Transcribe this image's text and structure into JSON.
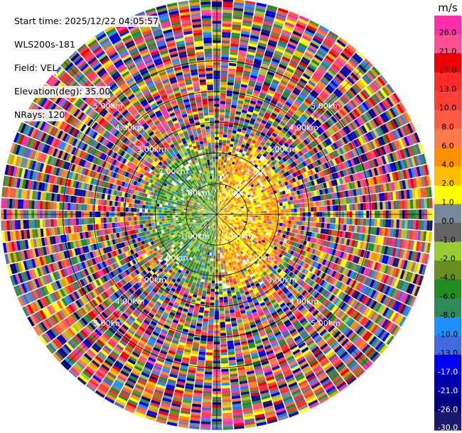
{
  "info": {
    "start_time": "Start time: 2025/12/22 04:05:57",
    "site": "WLS200s-181",
    "field": "Field: VEL",
    "elevation": "Elevation(deg): 35.00",
    "nrays": "NRays: 120"
  },
  "chart_data": {
    "type": "heatmap",
    "projection": "polar-ppi",
    "field": "VEL",
    "units": "m/s",
    "n_rays": 120,
    "elevation_deg": 35.0,
    "grid": true,
    "range_ring_labels": [
      "1.00km",
      "2.00km",
      "3.00km",
      "4.00km",
      "5.00km"
    ],
    "range_rings_km": [
      1,
      2,
      3,
      4,
      5
    ],
    "max_range_km": 7.0,
    "colorbar": {
      "label": "m/s",
      "position": "right",
      "ticks": [
        "26.0",
        "21.0",
        "17.0",
        "13.0",
        "10.0",
        "8.0",
        "6.0",
        "4.0",
        "2.0",
        "1.0",
        "0.0",
        "-1.0",
        "-2.0",
        "-4.0",
        "-6.0",
        "-8.0",
        "-10.0",
        "-13.0",
        "-17.0",
        "-21.0",
        "-26.0",
        "-30.0"
      ],
      "bins": [
        {
          "color": "#ff2fa9"
        },
        {
          "color": "#ff4f90"
        },
        {
          "color": "#ee0000"
        },
        {
          "color": "#ff2a2a"
        },
        {
          "color": "#ff3e35"
        },
        {
          "color": "#ff5b42"
        },
        {
          "color": "#ff7a4a"
        },
        {
          "color": "#ff9000"
        },
        {
          "color": "#ffbf00"
        },
        {
          "color": "#ffff00"
        },
        {
          "color": "#778899"
        },
        {
          "color": "#646464"
        },
        {
          "color": "#9acd32"
        },
        {
          "color": "#6b8e23"
        },
        {
          "color": "#228b22"
        },
        {
          "color": "#2e8b57"
        },
        {
          "color": "#1e90ff"
        },
        {
          "color": "#4169e1"
        },
        {
          "color": "#0000ff"
        },
        {
          "color": "#0000b0"
        },
        {
          "color": "#000080"
        },
        {
          "color": "#191970"
        }
      ]
    },
    "description_of_pattern": {
      "near_field_km": 2.0,
      "west_side": "negative (greens/blues, approaching)",
      "east_side": "positive (yellow/orange, receding)",
      "far_field": "noise across all colour bins"
    }
  }
}
